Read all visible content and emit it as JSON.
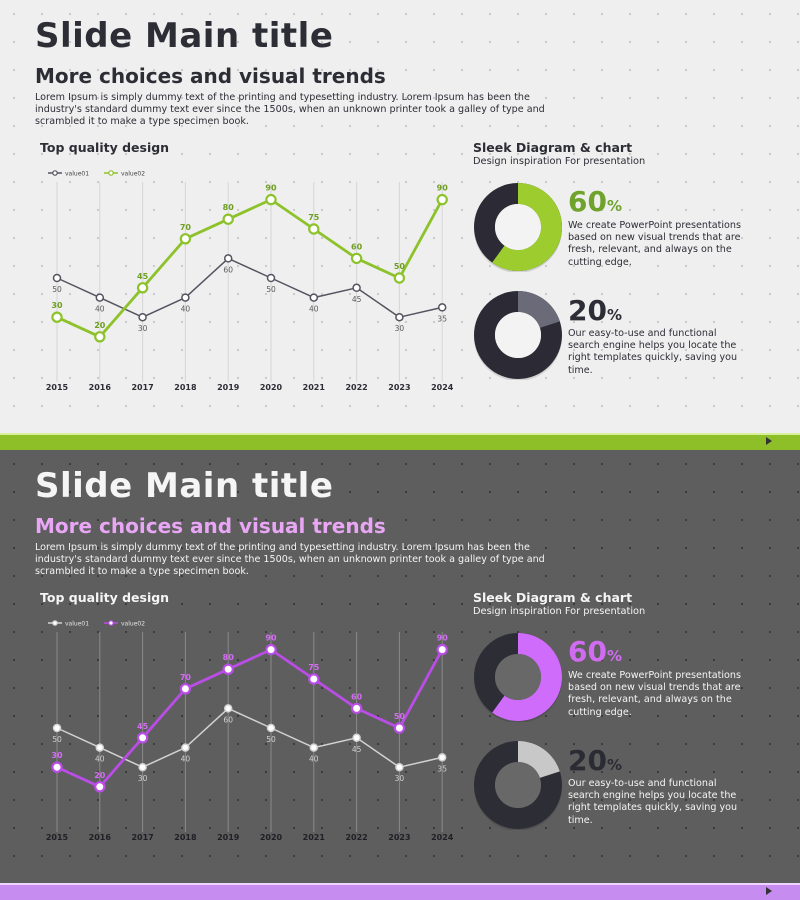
{
  "slides": [
    {
      "theme": "light",
      "title": "Slide Main title",
      "subtitle": "More choices and visual trends",
      "intro": "Lorem Ipsum is simply dummy text of the printing and typesetting industry. Lorem Ipsum has been the industry's standard dummy text ever since the 1500s, when an unknown printer took a galley of type and scrambled it to make a type specimen book.",
      "chart_heading": "Top quality design",
      "right_heading": "Sleek Diagram & chart",
      "right_subheading": "Design inspiration For presentation",
      "stat1": {
        "value": "60",
        "unit": "%",
        "text": "We create PowerPoint presentations based on new visual trends that are fresh, relevant, and always on the cutting edge."
      },
      "stat2": {
        "value": "20",
        "unit": "%",
        "text": "Our easy-to-use and functional search engine helps you locate the right templates quickly, saving you time."
      },
      "colors": {
        "series1": "#55535f",
        "series2": "#8dc22b",
        "label1": "#5b5b5b",
        "label2": "#6f9f22",
        "donut_dark": "#2c2b35",
        "donut1_fill": "#9ccc2e",
        "donut2_fill": "#6a6a78",
        "grid": "#d6d6d6",
        "axis_text": "#2d2d36",
        "node_fill": "#ffffff"
      }
    },
    {
      "theme": "dark",
      "title": "Slide Main title",
      "subtitle": "More choices and visual trends",
      "intro": "Lorem Ipsum is simply dummy text of the printing and typesetting industry. Lorem Ipsum has been the industry's standard dummy text ever since the 1500s, when an unknown printer took a galley of type and scrambled it to make a type specimen book.",
      "chart_heading": "Top quality design",
      "right_heading": "Sleek Diagram & chart",
      "right_subheading": "Design inspiration For presentation",
      "stat1": {
        "value": "60",
        "unit": "%",
        "text": "We create PowerPoint presentations based on new visual trends that are fresh, relevant, and always on the cutting edge."
      },
      "stat2": {
        "value": "20",
        "unit": "%",
        "text": "Our easy-to-use and functional search engine helps you locate the right templates quickly, saving you time."
      },
      "colors": {
        "series1": "#d2d2d2",
        "series2": "#b94de6",
        "label1": "#d0d0d0",
        "label2": "#d46cf4",
        "donut_dark": "#2d2d36",
        "donut1_fill": "#cf6cfb",
        "donut2_fill": "#c8c8c8",
        "grid": "#8a8a8a",
        "axis_text": "#1f1f25",
        "node_fill": "#ffffff"
      }
    }
  ],
  "chart_data": [
    {
      "type": "line",
      "title": "Top quality design",
      "categories": [
        "2015",
        "2016",
        "2017",
        "2018",
        "2019",
        "2020",
        "2021",
        "2022",
        "2023",
        "2024"
      ],
      "series": [
        {
          "name": "value01",
          "values": [
            50,
            40,
            30,
            40,
            60,
            50,
            40,
            45,
            30,
            35
          ]
        },
        {
          "name": "value02",
          "values": [
            30,
            20,
            45,
            70,
            80,
            90,
            75,
            60,
            50,
            90
          ]
        }
      ],
      "ylim": [
        0,
        100
      ],
      "grid": "vertical",
      "legend": "top-left"
    },
    {
      "type": "pie",
      "title": "Sleek Diagram & chart",
      "donuts": [
        {
          "label": "60%",
          "value": 60
        },
        {
          "label": "20%",
          "value": 20
        }
      ]
    }
  ]
}
